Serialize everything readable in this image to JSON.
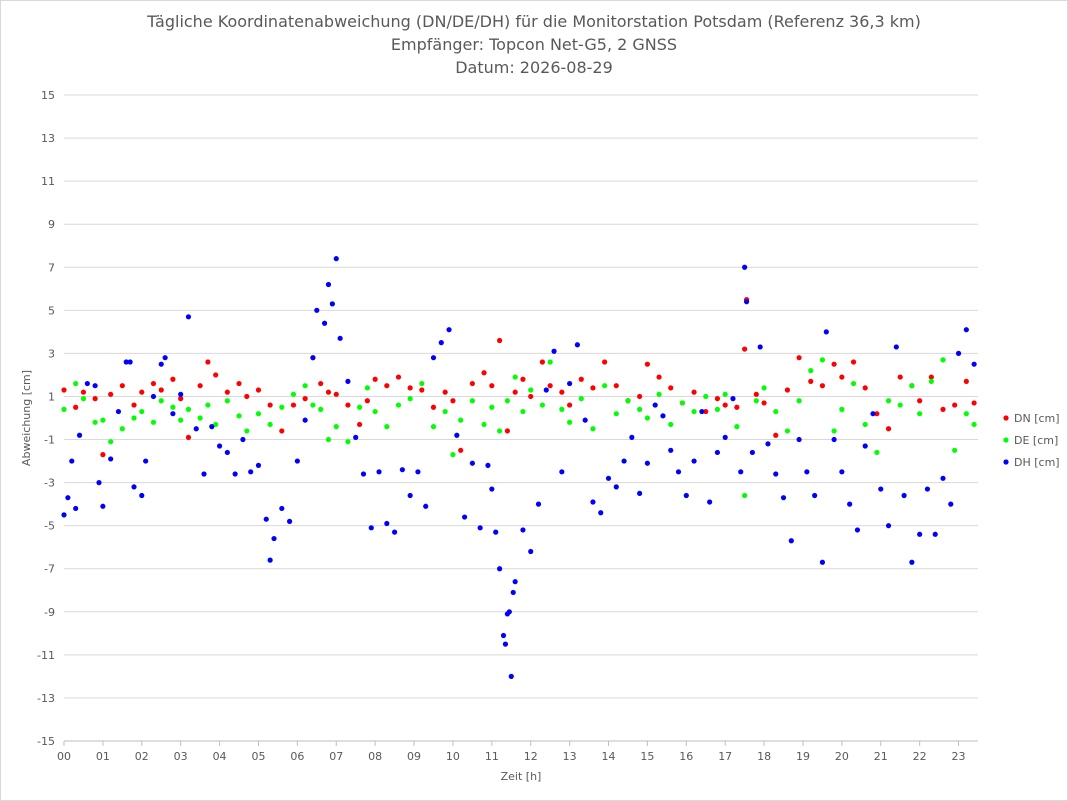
{
  "chart_data": {
    "type": "scatter",
    "title": "Tägliche Koordinatenabweichung (DN/DE/DH) für die Monitorstation Potsdam (Referenz 36,3 km)",
    "subtitle": "Empfänger: Topcon Net-G5, 2 GNSS",
    "subtitle2": "Datum: 2026-08-29",
    "xlabel": "Zeit [h]",
    "ylabel": "Abweichung [cm]",
    "xlim": [
      0,
      23.5
    ],
    "ylim": [
      -15,
      15
    ],
    "x_tick_labels": [
      "00",
      "01",
      "02",
      "03",
      "04",
      "05",
      "06",
      "07",
      "08",
      "09",
      "10",
      "11",
      "12",
      "13",
      "14",
      "15",
      "16",
      "17",
      "18",
      "19",
      "20",
      "21",
      "22",
      "23"
    ],
    "y_ticks": [
      15,
      13,
      11,
      9,
      7,
      5,
      3,
      1,
      -1,
      -3,
      -5,
      -7,
      -9,
      -11,
      -13,
      -15
    ],
    "legend_position": "right",
    "gridlines": "horizontal",
    "series": [
      {
        "name": "DN [cm]",
        "color": "#ff0000",
        "points": [
          [
            0.0,
            1.3
          ],
          [
            0.3,
            0.5
          ],
          [
            0.5,
            1.2
          ],
          [
            0.8,
            0.9
          ],
          [
            1.0,
            -1.7
          ],
          [
            1.2,
            1.1
          ],
          [
            1.5,
            1.5
          ],
          [
            1.8,
            0.6
          ],
          [
            2.0,
            1.2
          ],
          [
            2.3,
            1.6
          ],
          [
            2.5,
            1.3
          ],
          [
            2.8,
            1.8
          ],
          [
            3.0,
            0.9
          ],
          [
            3.2,
            -0.9
          ],
          [
            3.5,
            1.5
          ],
          [
            3.7,
            2.6
          ],
          [
            3.9,
            2.0
          ],
          [
            4.2,
            1.2
          ],
          [
            4.5,
            1.6
          ],
          [
            4.7,
            1.0
          ],
          [
            5.0,
            1.3
          ],
          [
            5.3,
            0.6
          ],
          [
            5.6,
            -0.6
          ],
          [
            5.9,
            0.6
          ],
          [
            6.2,
            0.9
          ],
          [
            6.4,
            2.8
          ],
          [
            6.6,
            1.6
          ],
          [
            6.8,
            1.2
          ],
          [
            7.0,
            1.1
          ],
          [
            7.3,
            0.6
          ],
          [
            7.6,
            -0.3
          ],
          [
            7.8,
            0.8
          ],
          [
            8.0,
            1.8
          ],
          [
            8.3,
            1.5
          ],
          [
            8.6,
            1.9
          ],
          [
            8.9,
            1.4
          ],
          [
            9.2,
            1.3
          ],
          [
            9.5,
            0.5
          ],
          [
            9.8,
            1.2
          ],
          [
            10.0,
            0.8
          ],
          [
            10.2,
            -1.5
          ],
          [
            10.5,
            1.6
          ],
          [
            10.8,
            2.1
          ],
          [
            11.0,
            1.5
          ],
          [
            11.2,
            3.6
          ],
          [
            11.4,
            -0.6
          ],
          [
            11.6,
            1.2
          ],
          [
            11.8,
            1.8
          ],
          [
            12.0,
            1.0
          ],
          [
            12.3,
            2.6
          ],
          [
            12.5,
            1.5
          ],
          [
            12.8,
            1.2
          ],
          [
            13.0,
            0.6
          ],
          [
            13.3,
            1.8
          ],
          [
            13.6,
            1.4
          ],
          [
            13.9,
            2.6
          ],
          [
            14.2,
            1.5
          ],
          [
            14.5,
            0.8
          ],
          [
            14.8,
            1.0
          ],
          [
            15.0,
            2.5
          ],
          [
            15.3,
            1.9
          ],
          [
            15.6,
            1.4
          ],
          [
            15.9,
            0.7
          ],
          [
            16.2,
            1.2
          ],
          [
            16.5,
            0.3
          ],
          [
            16.8,
            0.9
          ],
          [
            17.0,
            0.6
          ],
          [
            17.3,
            0.5
          ],
          [
            17.5,
            3.2
          ],
          [
            17.55,
            5.5
          ],
          [
            17.8,
            1.1
          ],
          [
            18.0,
            0.7
          ],
          [
            18.3,
            -0.8
          ],
          [
            18.6,
            1.3
          ],
          [
            18.9,
            2.8
          ],
          [
            19.2,
            1.7
          ],
          [
            19.5,
            1.5
          ],
          [
            19.8,
            2.5
          ],
          [
            20.0,
            1.9
          ],
          [
            20.3,
            2.6
          ],
          [
            20.6,
            1.4
          ],
          [
            20.9,
            0.2
          ],
          [
            21.2,
            -0.5
          ],
          [
            21.5,
            1.9
          ],
          [
            21.8,
            1.5
          ],
          [
            22.0,
            0.8
          ],
          [
            22.3,
            1.9
          ],
          [
            22.6,
            0.4
          ],
          [
            22.9,
            0.6
          ],
          [
            23.2,
            1.7
          ],
          [
            23.4,
            0.7
          ]
        ]
      },
      {
        "name": "DE [cm]",
        "color": "#00ff00",
        "points": [
          [
            0.0,
            0.4
          ],
          [
            0.3,
            1.6
          ],
          [
            0.5,
            0.9
          ],
          [
            0.8,
            -0.2
          ],
          [
            1.0,
            -0.1
          ],
          [
            1.2,
            -1.1
          ],
          [
            1.5,
            -0.5
          ],
          [
            1.8,
            0.0
          ],
          [
            2.0,
            0.3
          ],
          [
            2.3,
            -0.2
          ],
          [
            2.5,
            0.8
          ],
          [
            2.8,
            0.5
          ],
          [
            3.0,
            -0.1
          ],
          [
            3.2,
            0.4
          ],
          [
            3.5,
            0.0
          ],
          [
            3.7,
            0.6
          ],
          [
            3.9,
            -0.3
          ],
          [
            4.2,
            0.8
          ],
          [
            4.5,
            0.1
          ],
          [
            4.7,
            -0.6
          ],
          [
            5.0,
            0.2
          ],
          [
            5.3,
            -0.3
          ],
          [
            5.6,
            0.5
          ],
          [
            5.9,
            1.1
          ],
          [
            6.2,
            1.5
          ],
          [
            6.4,
            0.6
          ],
          [
            6.6,
            0.4
          ],
          [
            6.8,
            -1.0
          ],
          [
            7.0,
            -0.4
          ],
          [
            7.3,
            -1.1
          ],
          [
            7.6,
            0.5
          ],
          [
            7.8,
            1.4
          ],
          [
            8.0,
            0.3
          ],
          [
            8.3,
            -0.4
          ],
          [
            8.6,
            0.6
          ],
          [
            8.9,
            0.9
          ],
          [
            9.2,
            1.6
          ],
          [
            9.5,
            -0.4
          ],
          [
            9.8,
            0.3
          ],
          [
            10.0,
            -1.7
          ],
          [
            10.2,
            -0.1
          ],
          [
            10.5,
            0.8
          ],
          [
            10.8,
            -0.3
          ],
          [
            11.0,
            0.5
          ],
          [
            11.2,
            -0.6
          ],
          [
            11.4,
            0.8
          ],
          [
            11.6,
            1.9
          ],
          [
            11.8,
            0.3
          ],
          [
            12.0,
            1.3
          ],
          [
            12.3,
            0.6
          ],
          [
            12.5,
            2.6
          ],
          [
            12.8,
            0.4
          ],
          [
            13.0,
            -0.2
          ],
          [
            13.3,
            0.9
          ],
          [
            13.6,
            -0.5
          ],
          [
            13.9,
            1.5
          ],
          [
            14.2,
            0.2
          ],
          [
            14.5,
            0.8
          ],
          [
            14.8,
            0.4
          ],
          [
            15.0,
            0.0
          ],
          [
            15.3,
            1.1
          ],
          [
            15.6,
            -0.3
          ],
          [
            15.9,
            0.7
          ],
          [
            16.2,
            0.3
          ],
          [
            16.5,
            1.0
          ],
          [
            16.8,
            0.4
          ],
          [
            17.0,
            1.1
          ],
          [
            17.3,
            -0.4
          ],
          [
            17.5,
            -3.6
          ],
          [
            17.8,
            0.8
          ],
          [
            18.0,
            1.4
          ],
          [
            18.3,
            0.3
          ],
          [
            18.6,
            -0.6
          ],
          [
            18.9,
            0.8
          ],
          [
            19.2,
            2.2
          ],
          [
            19.5,
            2.7
          ],
          [
            19.8,
            -0.6
          ],
          [
            20.0,
            0.4
          ],
          [
            20.3,
            1.6
          ],
          [
            20.6,
            -0.3
          ],
          [
            20.9,
            -1.6
          ],
          [
            21.2,
            0.8
          ],
          [
            21.5,
            0.6
          ],
          [
            21.8,
            1.5
          ],
          [
            22.0,
            0.2
          ],
          [
            22.3,
            1.7
          ],
          [
            22.6,
            2.7
          ],
          [
            22.9,
            -1.5
          ],
          [
            23.2,
            0.2
          ],
          [
            23.4,
            -0.3
          ]
        ]
      },
      {
        "name": "DH [cm]",
        "color": "#0000ff",
        "points": [
          [
            0.0,
            -4.5
          ],
          [
            0.1,
            -3.7
          ],
          [
            0.2,
            -2.0
          ],
          [
            0.3,
            -4.2
          ],
          [
            0.4,
            -0.8
          ],
          [
            0.6,
            1.6
          ],
          [
            0.8,
            1.5
          ],
          [
            0.9,
            -3.0
          ],
          [
            1.0,
            -4.1
          ],
          [
            1.2,
            -1.9
          ],
          [
            1.4,
            0.3
          ],
          [
            1.6,
            2.6
          ],
          [
            1.7,
            2.6
          ],
          [
            1.8,
            -3.2
          ],
          [
            2.0,
            -3.6
          ],
          [
            2.1,
            -2.0
          ],
          [
            2.3,
            1.0
          ],
          [
            2.5,
            2.5
          ],
          [
            2.6,
            2.8
          ],
          [
            2.8,
            0.2
          ],
          [
            3.0,
            1.1
          ],
          [
            3.2,
            4.7
          ],
          [
            3.4,
            -0.5
          ],
          [
            3.6,
            -2.6
          ],
          [
            3.8,
            -0.4
          ],
          [
            4.0,
            -1.3
          ],
          [
            4.2,
            -1.6
          ],
          [
            4.4,
            -2.6
          ],
          [
            4.6,
            -1.0
          ],
          [
            4.8,
            -2.5
          ],
          [
            5.0,
            -2.2
          ],
          [
            5.2,
            -4.7
          ],
          [
            5.3,
            -6.6
          ],
          [
            5.4,
            -5.6
          ],
          [
            5.6,
            -4.2
          ],
          [
            5.8,
            -4.8
          ],
          [
            6.0,
            -2.0
          ],
          [
            6.2,
            -0.1
          ],
          [
            6.4,
            2.8
          ],
          [
            6.5,
            5.0
          ],
          [
            6.7,
            4.4
          ],
          [
            6.8,
            6.2
          ],
          [
            6.9,
            5.3
          ],
          [
            7.0,
            7.4
          ],
          [
            7.1,
            3.7
          ],
          [
            7.3,
            1.7
          ],
          [
            7.5,
            -0.9
          ],
          [
            7.7,
            -2.6
          ],
          [
            7.9,
            -5.1
          ],
          [
            8.1,
            -2.5
          ],
          [
            8.3,
            -4.9
          ],
          [
            8.5,
            -5.3
          ],
          [
            8.7,
            -2.4
          ],
          [
            8.9,
            -3.6
          ],
          [
            9.1,
            -2.5
          ],
          [
            9.3,
            -4.1
          ],
          [
            9.5,
            2.8
          ],
          [
            9.7,
            3.5
          ],
          [
            9.9,
            4.1
          ],
          [
            10.1,
            -0.8
          ],
          [
            10.3,
            -4.6
          ],
          [
            10.5,
            -2.1
          ],
          [
            10.7,
            -5.1
          ],
          [
            10.9,
            -2.2
          ],
          [
            11.0,
            -3.3
          ],
          [
            11.1,
            -5.3
          ],
          [
            11.2,
            -7.0
          ],
          [
            11.3,
            -10.1
          ],
          [
            11.35,
            -10.5
          ],
          [
            11.4,
            -9.1
          ],
          [
            11.45,
            -9.0
          ],
          [
            11.5,
            -12.0
          ],
          [
            11.55,
            -8.1
          ],
          [
            11.6,
            -7.6
          ],
          [
            11.8,
            -5.2
          ],
          [
            12.0,
            -6.2
          ],
          [
            12.2,
            -4.0
          ],
          [
            12.4,
            1.3
          ],
          [
            12.6,
            3.1
          ],
          [
            12.8,
            -2.5
          ],
          [
            13.0,
            1.6
          ],
          [
            13.2,
            3.4
          ],
          [
            13.4,
            -0.1
          ],
          [
            13.6,
            -3.9
          ],
          [
            13.8,
            -4.4
          ],
          [
            14.0,
            -2.8
          ],
          [
            14.2,
            -3.2
          ],
          [
            14.4,
            -2.0
          ],
          [
            14.6,
            -0.9
          ],
          [
            14.8,
            -3.5
          ],
          [
            15.0,
            -2.1
          ],
          [
            15.2,
            0.6
          ],
          [
            15.4,
            0.1
          ],
          [
            15.6,
            -1.5
          ],
          [
            15.8,
            -2.5
          ],
          [
            16.0,
            -3.6
          ],
          [
            16.2,
            -2.0
          ],
          [
            16.4,
            0.3
          ],
          [
            16.6,
            -3.9
          ],
          [
            16.8,
            -1.6
          ],
          [
            17.0,
            -0.9
          ],
          [
            17.2,
            0.9
          ],
          [
            17.4,
            -2.5
          ],
          [
            17.5,
            7.0
          ],
          [
            17.55,
            5.4
          ],
          [
            17.7,
            -1.6
          ],
          [
            17.9,
            3.3
          ],
          [
            18.1,
            -1.2
          ],
          [
            18.3,
            -2.6
          ],
          [
            18.5,
            -3.7
          ],
          [
            18.7,
            -5.7
          ],
          [
            18.9,
            -1.0
          ],
          [
            19.1,
            -2.5
          ],
          [
            19.3,
            -3.6
          ],
          [
            19.5,
            -6.7
          ],
          [
            19.6,
            4.0
          ],
          [
            19.8,
            -1.0
          ],
          [
            20.0,
            -2.5
          ],
          [
            20.2,
            -4.0
          ],
          [
            20.4,
            -5.2
          ],
          [
            20.6,
            -1.3
          ],
          [
            20.8,
            0.2
          ],
          [
            21.0,
            -3.3
          ],
          [
            21.2,
            -5.0
          ],
          [
            21.4,
            3.3
          ],
          [
            21.6,
            -3.6
          ],
          [
            21.8,
            -6.7
          ],
          [
            22.0,
            -5.4
          ],
          [
            22.2,
            -3.3
          ],
          [
            22.4,
            -5.4
          ],
          [
            22.6,
            -2.8
          ],
          [
            22.8,
            -4.0
          ],
          [
            23.0,
            3.0
          ],
          [
            23.2,
            4.1
          ],
          [
            23.4,
            2.5
          ]
        ]
      }
    ]
  }
}
